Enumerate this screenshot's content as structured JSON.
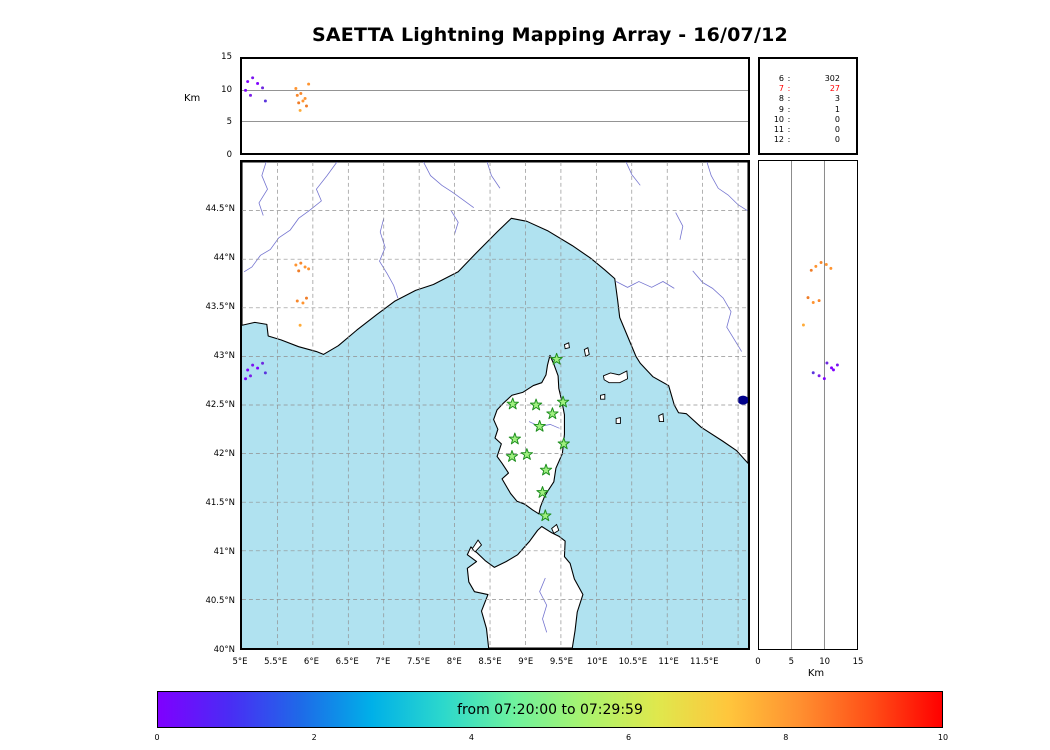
{
  "colors": {
    "sea": "#b0e2f0",
    "land": "#ffffff",
    "coast": "#000000",
    "river": "#7575d0",
    "grid": "#909090",
    "lake": "#00008b",
    "station_fill": "#a0f080",
    "station_edge": "#1e8f1e"
  },
  "chart_data": {
    "type": "scatter",
    "title": "SAETTA Lightning Mapping Array - 16/07/12",
    "subtitle": "",
    "time_window": "from 07:20:00 to 07:29:59",
    "sources": [
      {
        "lon": 5.08,
        "lat": 42.86,
        "alt_km": 11.4,
        "color": "#8000ff"
      },
      {
        "lon": 5.15,
        "lat": 42.91,
        "alt_km": 12.0,
        "color": "#7a14f0"
      },
      {
        "lon": 5.22,
        "lat": 42.88,
        "alt_km": 11.1,
        "color": "#8000ff"
      },
      {
        "lon": 5.29,
        "lat": 42.93,
        "alt_km": 10.4,
        "color": "#6e28e0"
      },
      {
        "lon": 5.12,
        "lat": 42.8,
        "alt_km": 9.2,
        "color": "#7b1fe8"
      },
      {
        "lon": 5.33,
        "lat": 42.83,
        "alt_km": 8.3,
        "color": "#5a35dd"
      },
      {
        "lon": 5.05,
        "lat": 42.77,
        "alt_km": 10.0,
        "color": "#8000ff"
      },
      {
        "lon": 5.76,
        "lat": 43.94,
        "alt_km": 10.3,
        "color": "#ff9430"
      },
      {
        "lon": 5.83,
        "lat": 43.96,
        "alt_km": 9.5,
        "color": "#f8872b"
      },
      {
        "lon": 5.89,
        "lat": 43.92,
        "alt_km": 8.7,
        "color": "#ff9430"
      },
      {
        "lon": 5.8,
        "lat": 43.88,
        "alt_km": 8.0,
        "color": "#f07d28"
      },
      {
        "lon": 5.94,
        "lat": 43.9,
        "alt_km": 11.0,
        "color": "#ff9430"
      },
      {
        "lon": 5.78,
        "lat": 43.57,
        "alt_km": 9.2,
        "color": "#f8872b"
      },
      {
        "lon": 5.86,
        "lat": 43.55,
        "alt_km": 8.3,
        "color": "#ff9430"
      },
      {
        "lon": 5.91,
        "lat": 43.6,
        "alt_km": 7.5,
        "color": "#f07d28"
      },
      {
        "lon": 5.82,
        "lat": 43.32,
        "alt_km": 6.8,
        "color": "#ffab38"
      }
    ],
    "map": {
      "extent": {
        "lon": [
          5.0,
          12.14
        ],
        "lat": [
          40.0,
          45.0
        ]
      },
      "grid_step_deg": 0.5,
      "stations": [
        [
          9.44,
          42.97
        ],
        [
          8.82,
          42.51
        ],
        [
          9.15,
          42.5
        ],
        [
          9.38,
          42.41
        ],
        [
          9.53,
          42.53
        ],
        [
          9.2,
          42.28
        ],
        [
          8.85,
          42.15
        ],
        [
          9.54,
          42.1
        ],
        [
          8.81,
          41.97
        ],
        [
          9.02,
          41.99
        ],
        [
          9.29,
          41.83
        ],
        [
          9.24,
          41.6
        ],
        [
          9.28,
          41.36
        ]
      ],
      "lake": {
        "lon": 12.07,
        "lat": 42.55
      },
      "lat_ticks": [
        {
          "label": "44.5°N",
          "value": 44.5
        },
        {
          "label": "44°N",
          "value": 44.0
        },
        {
          "label": "43.5°N",
          "value": 43.5
        },
        {
          "label": "43°N",
          "value": 43.0
        },
        {
          "label": "42.5°N",
          "value": 42.5
        },
        {
          "label": "42°N",
          "value": 42.0
        },
        {
          "label": "41.5°N",
          "value": 41.5
        },
        {
          "label": "41°N",
          "value": 41.0
        },
        {
          "label": "40.5°N",
          "value": 40.5
        },
        {
          "label": "40°N",
          "value": 40.0
        }
      ],
      "lon_ticks": [
        {
          "label": "5°E",
          "value": 5.0
        },
        {
          "label": "5.5°E",
          "value": 5.5
        },
        {
          "label": "6°E",
          "value": 6.0
        },
        {
          "label": "6.5°E",
          "value": 6.5
        },
        {
          "label": "7°E",
          "value": 7.0
        },
        {
          "label": "7.5°E",
          "value": 7.5
        },
        {
          "label": "8°E",
          "value": 8.0
        },
        {
          "label": "8.5°E",
          "value": 8.5
        },
        {
          "label": "9°E",
          "value": 9.0
        },
        {
          "label": "9.5°E",
          "value": 9.5
        },
        {
          "label": "10°E",
          "value": 10.0
        },
        {
          "label": "10.5°E",
          "value": 10.5
        },
        {
          "label": "11°E",
          "value": 11.0
        },
        {
          "label": "11.5°E",
          "value": 11.5
        }
      ]
    },
    "alt_lon": {
      "type": "scatter",
      "ylabel": "Km",
      "y_range": [
        0,
        15
      ],
      "y_ticks": [
        {
          "label": "15",
          "value": 15
        },
        {
          "label": "10",
          "value": 10
        },
        {
          "label": "5",
          "value": 5
        },
        {
          "label": "0",
          "value": 0
        }
      ],
      "reference_lines": [
        5,
        10
      ]
    },
    "alt_lat": {
      "type": "scatter",
      "xlabel": "Km",
      "x_range": [
        0,
        15
      ],
      "x_ticks": [
        {
          "label": "0",
          "value": 0
        },
        {
          "label": "5",
          "value": 5
        },
        {
          "label": "10",
          "value": 10
        },
        {
          "label": "15",
          "value": 15
        }
      ],
      "reference_lines": [
        5,
        10
      ]
    },
    "station_histogram": {
      "rows": [
        {
          "label": "6",
          "value": "302",
          "color": "#000000"
        },
        {
          "label": "7",
          "value": "27",
          "color": "#ff0000"
        },
        {
          "label": "8",
          "value": "3",
          "color": "#000000"
        },
        {
          "label": "9",
          "value": "1",
          "color": "#000000"
        },
        {
          "label": "10",
          "value": "0",
          "color": "#000000"
        },
        {
          "label": "11",
          "value": "0",
          "color": "#000000"
        },
        {
          "label": "12",
          "value": "0",
          "color": "#000000"
        }
      ]
    },
    "colorbar": {
      "label": "from 07:20:00 to 07:29:59",
      "range": [
        0,
        10
      ],
      "ticks": [
        {
          "label": "0",
          "value": 0
        },
        {
          "label": "2",
          "value": 2
        },
        {
          "label": "4",
          "value": 4
        },
        {
          "label": "6",
          "value": 6
        },
        {
          "label": "8",
          "value": 8
        },
        {
          "label": "10",
          "value": 10
        }
      ],
      "gradient": [
        "#7f00ff",
        "#4a2cf5",
        "#1e6ae8",
        "#00b0e8",
        "#2cd8cc",
        "#6ef29e",
        "#aaf36e",
        "#dfe84d",
        "#ffc63c",
        "#ff9030",
        "#ff4f17",
        "#ff0000"
      ]
    }
  }
}
